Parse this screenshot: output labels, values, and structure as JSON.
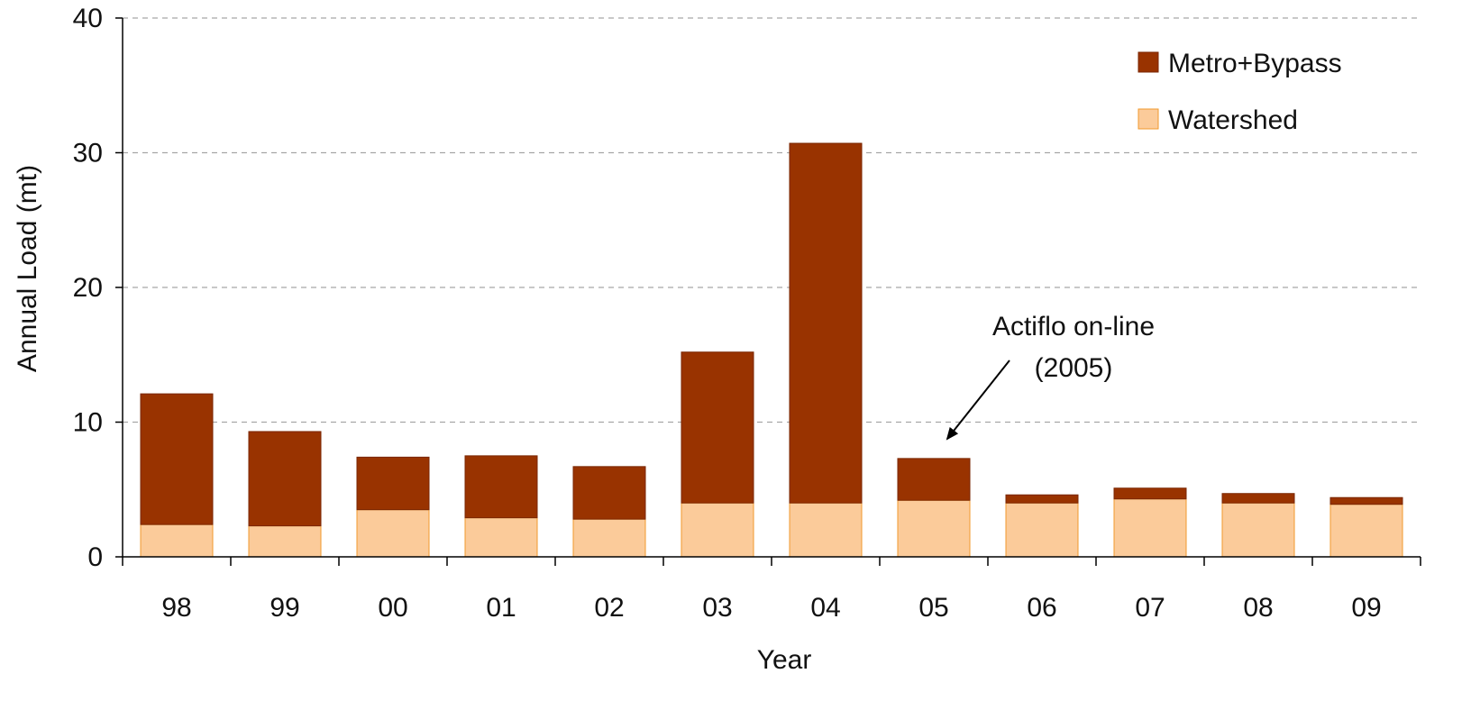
{
  "chart_data": {
    "type": "bar",
    "stacked": true,
    "title": "",
    "xlabel": "Year",
    "ylabel": "Annual Load (mt)",
    "categories": [
      "98",
      "99",
      "00",
      "01",
      "02",
      "03",
      "04",
      "05",
      "06",
      "07",
      "08",
      "09"
    ],
    "ylim": [
      0,
      40
    ],
    "yticks": [
      0,
      10,
      20,
      30,
      40
    ],
    "grid": "horizontal dashed",
    "legend_position": "top-right",
    "series": [
      {
        "name": "Watershed",
        "color": "#FBCB9A",
        "border": "#F29A2E",
        "values": [
          2.4,
          2.3,
          3.5,
          2.9,
          2.8,
          4.0,
          4.0,
          4.2,
          4.0,
          4.3,
          4.0,
          3.9
        ]
      },
      {
        "name": "Metro+Bypass",
        "color": "#993300",
        "border": "#7A2600",
        "values": [
          9.7,
          7.0,
          3.9,
          4.6,
          3.9,
          11.2,
          26.7,
          3.1,
          0.6,
          0.8,
          0.7,
          0.5
        ]
      }
    ],
    "legend_order": [
      "Metro+Bypass",
      "Watershed"
    ],
    "annotation": {
      "lines": [
        "Actiflo on-line",
        "(2005)"
      ],
      "points_to_category": "05"
    }
  }
}
